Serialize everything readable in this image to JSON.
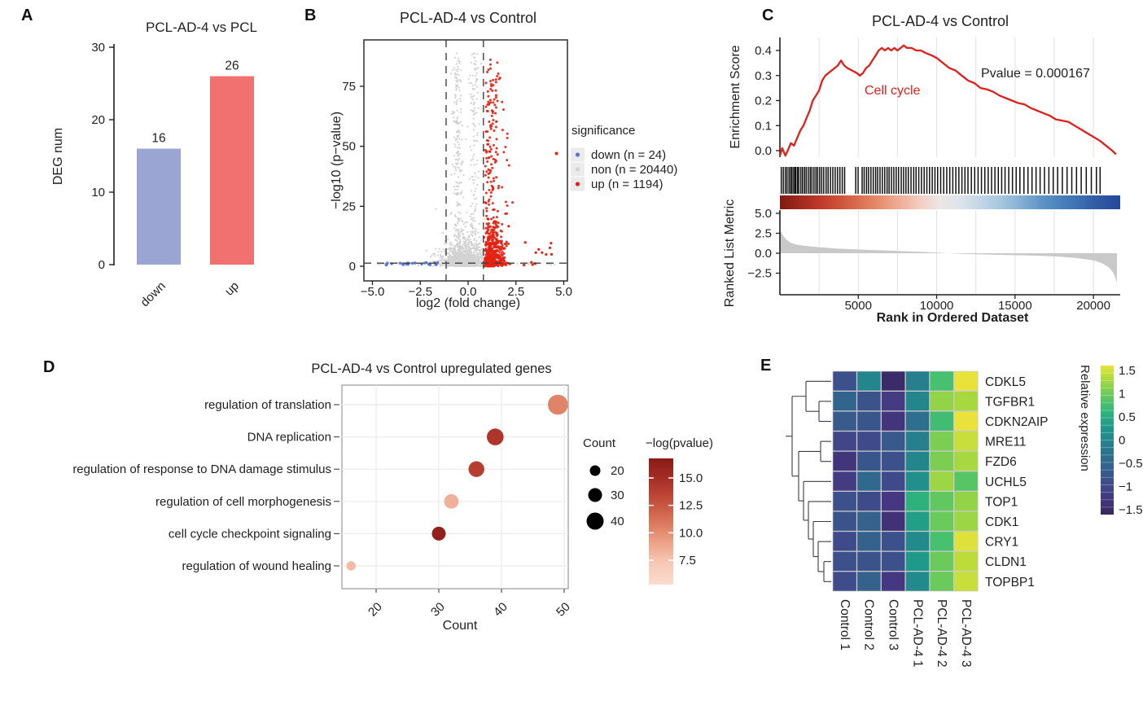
{
  "panels": {
    "a": "A",
    "b": "B",
    "c": "C",
    "d": "D",
    "e": "E"
  },
  "chart_data": [
    {
      "panel": "A",
      "type": "bar",
      "title": "PCL-AD-4 vs PCL",
      "ylabel": "DEG num",
      "categories": [
        "down",
        "up"
      ],
      "values": [
        16,
        26
      ],
      "value_labels": [
        "16",
        "26"
      ],
      "bar_colors": [
        "#9AA5D3",
        "#F0716F"
      ],
      "ylim": [
        0,
        30
      ],
      "yticks": [
        0,
        10,
        20,
        30
      ]
    },
    {
      "panel": "B",
      "type": "scatter",
      "subtype": "volcano",
      "title": "PCL-AD-4 vs Control",
      "xlabel": "log2 (fold change)",
      "ylabel": "−log10 (p−value)",
      "xticks": [
        -5.0,
        -2.5,
        0.0,
        2.5,
        5.0
      ],
      "yticks": [
        0,
        25,
        50,
        75
      ],
      "xlim": [
        -5.45,
        5.2
      ],
      "ylim": [
        -2,
        94
      ],
      "threshold_vlines": [
        -1.15,
        0.8
      ],
      "threshold_hline": 1.3,
      "legend_title": "significance",
      "legend": [
        {
          "label": "down (n = 24)",
          "n": 24,
          "color": "#5B76C8"
        },
        {
          "label": "non (n = 20440)",
          "n": 20440,
          "color": "#D2D2D2"
        },
        {
          "label": "up (n = 1194)",
          "n": 1194,
          "color": "#E42313"
        }
      ]
    },
    {
      "panel": "C",
      "type": "line",
      "subtype": "gsea_enrichment",
      "title": "PCL-AD-4 vs Control",
      "gene_set_label": "Cell cycle",
      "pvalue_label": "Pvalue = 0.000167",
      "es_ylabel": "Enrichment Score",
      "es_yticks": [
        0.0,
        0.1,
        0.2,
        0.3,
        0.4
      ],
      "rank_ylabel": "Ranked List Metric",
      "rank_yticks": [
        5.0,
        2.5,
        0.0,
        -2.5
      ],
      "xlabel": "Rank in Ordered Dataset",
      "xticks": [
        5000,
        10000,
        15000,
        20000
      ],
      "xlim": [
        0,
        21500
      ],
      "curve_color": "#E01F1A",
      "es_curve": [
        [
          0,
          -0.02
        ],
        [
          150,
          0.01
        ],
        [
          350,
          -0.02
        ],
        [
          500,
          0.0
        ],
        [
          700,
          0.03
        ],
        [
          900,
          0.02
        ],
        [
          1100,
          0.05
        ],
        [
          1300,
          0.08
        ],
        [
          1500,
          0.1
        ],
        [
          1700,
          0.13
        ],
        [
          1900,
          0.16
        ],
        [
          2100,
          0.2
        ],
        [
          2300,
          0.22
        ],
        [
          2500,
          0.24
        ],
        [
          2700,
          0.28
        ],
        [
          2900,
          0.3
        ],
        [
          3100,
          0.31
        ],
        [
          3300,
          0.32
        ],
        [
          3500,
          0.33
        ],
        [
          3700,
          0.34
        ],
        [
          3900,
          0.36
        ],
        [
          4100,
          0.34
        ],
        [
          4300,
          0.33
        ],
        [
          4600,
          0.32
        ],
        [
          4900,
          0.31
        ],
        [
          5100,
          0.3
        ],
        [
          5300,
          0.31
        ],
        [
          5500,
          0.33
        ],
        [
          5700,
          0.34
        ],
        [
          5900,
          0.36
        ],
        [
          6100,
          0.38
        ],
        [
          6300,
          0.4
        ],
        [
          6500,
          0.41
        ],
        [
          6700,
          0.4
        ],
        [
          6900,
          0.41
        ],
        [
          7100,
          0.4
        ],
        [
          7300,
          0.41
        ],
        [
          7500,
          0.4
        ],
        [
          7700,
          0.41
        ],
        [
          7900,
          0.42
        ],
        [
          8100,
          0.41
        ],
        [
          8400,
          0.41
        ],
        [
          8700,
          0.4
        ],
        [
          9000,
          0.4
        ],
        [
          9300,
          0.39
        ],
        [
          9700,
          0.38
        ],
        [
          10000,
          0.37
        ],
        [
          10400,
          0.35
        ],
        [
          10800,
          0.33
        ],
        [
          11200,
          0.32
        ],
        [
          11600,
          0.3
        ],
        [
          12000,
          0.28
        ],
        [
          12400,
          0.27
        ],
        [
          12800,
          0.25
        ],
        [
          13200,
          0.245
        ],
        [
          13600,
          0.235
        ],
        [
          14000,
          0.22
        ],
        [
          14400,
          0.21
        ],
        [
          14800,
          0.2
        ],
        [
          15200,
          0.19
        ],
        [
          15600,
          0.185
        ],
        [
          16000,
          0.17
        ],
        [
          16400,
          0.16
        ],
        [
          16800,
          0.15
        ],
        [
          17200,
          0.14
        ],
        [
          17600,
          0.125
        ],
        [
          18000,
          0.12
        ],
        [
          18400,
          0.115
        ],
        [
          18800,
          0.1
        ],
        [
          19200,
          0.085
        ],
        [
          19600,
          0.07
        ],
        [
          20000,
          0.055
        ],
        [
          20400,
          0.04
        ],
        [
          20800,
          0.02
        ],
        [
          21200,
          0.0
        ],
        [
          21450,
          -0.015
        ]
      ],
      "rank_metric_curve": [
        [
          0,
          3.0
        ],
        [
          200,
          2.2
        ],
        [
          400,
          1.7
        ],
        [
          700,
          1.3
        ],
        [
          1000,
          1.1
        ],
        [
          1500,
          0.95
        ],
        [
          2000,
          0.85
        ],
        [
          2500,
          0.75
        ],
        [
          3000,
          0.68
        ],
        [
          3500,
          0.6
        ],
        [
          4000,
          0.55
        ],
        [
          5000,
          0.47
        ],
        [
          6000,
          0.4
        ],
        [
          7000,
          0.33
        ],
        [
          8000,
          0.25
        ],
        [
          9000,
          0.17
        ],
        [
          10000,
          0.08
        ],
        [
          10700,
          0.0
        ],
        [
          11500,
          -0.06
        ],
        [
          12500,
          -0.12
        ],
        [
          13500,
          -0.18
        ],
        [
          14500,
          -0.22
        ],
        [
          15500,
          -0.27
        ],
        [
          16500,
          -0.32
        ],
        [
          17500,
          -0.4
        ],
        [
          18200,
          -0.48
        ],
        [
          18800,
          -0.58
        ],
        [
          19300,
          -0.7
        ],
        [
          19800,
          -0.85
        ],
        [
          20200,
          -1.0
        ],
        [
          20600,
          -1.3
        ],
        [
          21000,
          -1.8
        ],
        [
          21250,
          -2.4
        ],
        [
          21400,
          -3.1
        ],
        [
          21500,
          -3.7
        ]
      ],
      "hit_fractions": [
        0.004,
        0.01,
        0.016,
        0.021,
        0.027,
        0.032,
        0.036,
        0.041,
        0.045,
        0.047,
        0.052,
        0.056,
        0.062,
        0.067,
        0.073,
        0.078,
        0.084,
        0.09,
        0.095,
        0.101,
        0.107,
        0.112,
        0.118,
        0.124,
        0.13,
        0.137,
        0.143,
        0.15,
        0.157,
        0.164,
        0.171,
        0.178,
        0.185,
        0.192,
        0.225,
        0.232,
        0.244,
        0.25,
        0.257,
        0.263,
        0.27,
        0.277,
        0.284,
        0.29,
        0.297,
        0.304,
        0.311,
        0.318,
        0.324,
        0.331,
        0.338,
        0.345,
        0.352,
        0.36,
        0.367,
        0.374,
        0.381,
        0.389,
        0.397,
        0.404,
        0.412,
        0.42,
        0.428,
        0.436,
        0.444,
        0.452,
        0.46,
        0.468,
        0.477,
        0.486,
        0.495,
        0.504,
        0.513,
        0.522,
        0.531,
        0.54,
        0.549,
        0.558,
        0.568,
        0.578,
        0.588,
        0.598,
        0.608,
        0.618,
        0.628,
        0.638,
        0.648,
        0.658,
        0.668,
        0.679,
        0.69,
        0.701,
        0.712,
        0.724,
        0.736,
        0.748,
        0.76,
        0.772,
        0.785,
        0.798,
        0.811,
        0.824,
        0.838,
        0.852,
        0.866,
        0.88,
        0.894,
        0.909,
        0.924,
        0.939,
        0.95
      ],
      "band_colors": [
        "#7F1A13",
        "#A02A1E",
        "#C0392B",
        "#CE523A",
        "#DC6F52",
        "#E78F70",
        "#EFAE97",
        "#F3CDC1",
        "#ECE6E4",
        "#DDE4EB",
        "#C3D6E6",
        "#A6C7DF",
        "#85B0D4",
        "#6096C6",
        "#4A82BA",
        "#3B6EB0",
        "#2F57A3",
        "#27489B"
      ]
    },
    {
      "panel": "D",
      "type": "scatter",
      "subtype": "dotplot",
      "title": "PCL-AD-4 vs Control upregulated genes",
      "xlabel": "Count",
      "xticks": [
        20,
        30,
        40,
        50
      ],
      "terms": [
        {
          "label": "regulation of translation",
          "count": 49,
          "neglog_pvalue": 10.5
        },
        {
          "label": "DNA replication",
          "count": 39,
          "neglog_pvalue": 14.5
        },
        {
          "label": "regulation of response to DNA damage stimulus",
          "count": 36,
          "neglog_pvalue": 14.0
        },
        {
          "label": "regulation of cell morphogenesis",
          "count": 32,
          "neglog_pvalue": 8.5
        },
        {
          "label": "cell cycle checkpoint signaling",
          "count": 30,
          "neglog_pvalue": 16.0
        },
        {
          "label": "regulation of wound healing",
          "count": 16,
          "neglog_pvalue": 8.0
        }
      ],
      "size_legend": {
        "title": "Count",
        "sizes": [
          20,
          30,
          40
        ]
      },
      "color_legend": {
        "title": "−log(pvalue)",
        "tick_values": [
          15.0,
          12.5,
          10.0,
          7.5
        ],
        "tick_labels": [
          "15.0",
          "12.5",
          "10.0",
          "7.5"
        ]
      }
    },
    {
      "panel": "E",
      "type": "heatmap",
      "genes": [
        "CDKL5",
        "TGFBR1",
        "CDKN2AIP",
        "MRE11",
        "FZD6",
        "UCHL5",
        "TOP1",
        "CDK1",
        "CRY1",
        "CLDN1",
        "TOPBP1"
      ],
      "samples": [
        "Control 1",
        "Control 2",
        "Control 3",
        "PCL-AD-4 1",
        "PCL-AD-4 2",
        "PCL-AD-4 3"
      ],
      "values": [
        [
          -0.9,
          -0.05,
          -1.5,
          -0.15,
          0.7,
          1.5
        ],
        [
          -0.55,
          -0.85,
          -1.2,
          -0.05,
          1.1,
          1.2
        ],
        [
          -0.7,
          -0.8,
          -1.3,
          -0.4,
          0.65,
          1.5
        ],
        [
          -1.05,
          -1.0,
          -0.75,
          -0.15,
          1.0,
          1.35
        ],
        [
          -1.3,
          -0.8,
          -0.9,
          -0.05,
          1.0,
          1.2
        ],
        [
          -1.2,
          -0.5,
          -1.0,
          0.1,
          1.15,
          0.8
        ],
        [
          -0.9,
          -1.0,
          -1.25,
          0.5,
          0.85,
          1.1
        ],
        [
          -0.85,
          -0.6,
          -1.35,
          0.3,
          0.9,
          1.15
        ],
        [
          -1.0,
          -0.6,
          -0.9,
          0.0,
          0.7,
          1.45
        ],
        [
          -0.9,
          -0.85,
          -0.9,
          0.25,
          0.9,
          1.3
        ],
        [
          -0.95,
          -0.6,
          -1.25,
          0.0,
          0.9,
          1.35
        ]
      ],
      "colorbar": {
        "title": "Relative expression",
        "tick_values": [
          1.5,
          1,
          0.5,
          0,
          -0.5,
          -1,
          -1.5
        ],
        "tick_labels": [
          "1.5",
          "1",
          "0.5",
          "0",
          "−0.5",
          "−1",
          "−1.5"
        ],
        "domain": [
          -1.5,
          1.5
        ]
      },
      "dendrogram": {
        "leaf_x": 1021,
        "merges": [
          {
            "a": {
              "leaf": 1
            },
            "b": {
              "leaf": 2
            },
            "x": 1006
          },
          {
            "a": {
              "leaf": 0
            },
            "b": {
              "node": 0
            },
            "x": 990
          },
          {
            "a": {
              "leaf": 3
            },
            "b": {
              "leaf": 4
            },
            "x": 1008
          },
          {
            "a": {
              "leaf": 9
            },
            "b": {
              "leaf": 10
            },
            "x": 1012
          },
          {
            "a": {
              "leaf": 8
            },
            "b": {
              "node": 3
            },
            "x": 1005
          },
          {
            "a": {
              "leaf": 7
            },
            "b": {
              "node": 4
            },
            "x": 999
          },
          {
            "a": {
              "leaf": 6
            },
            "b": {
              "node": 5
            },
            "x": 993
          },
          {
            "a": {
              "leaf": 5
            },
            "b": {
              "node": 6
            },
            "x": 987
          },
          {
            "a": {
              "node": 2
            },
            "b": {
              "node": 7
            },
            "x": 981
          },
          {
            "a": {
              "node": 1
            },
            "b": {
              "node": 8
            },
            "x": 973
          }
        ]
      }
    }
  ]
}
